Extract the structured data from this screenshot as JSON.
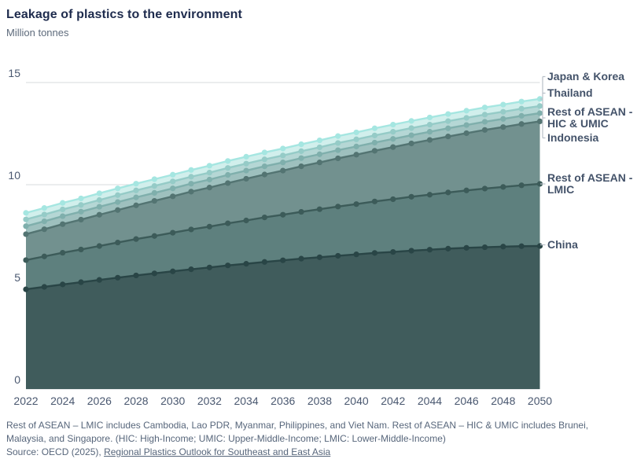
{
  "chart_data": {
    "type": "area",
    "stacked": true,
    "title": "Leakage of plastics to the environment",
    "ylabel": "Million tonnes",
    "xlabel": "",
    "grid": "horizontal",
    "legend": "direct-labels-right",
    "ylim": [
      0,
      16.5
    ],
    "y_ticks": [
      0,
      5,
      10,
      15
    ],
    "x": [
      2022,
      2023,
      2024,
      2025,
      2026,
      2027,
      2028,
      2029,
      2030,
      2031,
      2032,
      2033,
      2034,
      2035,
      2036,
      2037,
      2038,
      2039,
      2040,
      2041,
      2042,
      2043,
      2044,
      2045,
      2046,
      2047,
      2048,
      2049,
      2050
    ],
    "x_tick_years": [
      2022,
      2024,
      2026,
      2028,
      2030,
      2032,
      2034,
      2036,
      2038,
      2040,
      2042,
      2044,
      2046,
      2048,
      2050
    ],
    "series": [
      {
        "name": "China",
        "label_lines": [
          "China"
        ],
        "fill": "#405c5c",
        "line": "#294546",
        "values": [
          4.88,
          5.0,
          5.12,
          5.23,
          5.34,
          5.45,
          5.56,
          5.66,
          5.76,
          5.86,
          5.95,
          6.05,
          6.13,
          6.22,
          6.3,
          6.38,
          6.45,
          6.52,
          6.59,
          6.66,
          6.71,
          6.77,
          6.82,
          6.87,
          6.91,
          6.94,
          6.97,
          6.99,
          7.0
        ]
      },
      {
        "name": "Rest of ASEAN - LMIC",
        "label_lines": [
          "Rest of ASEAN -",
          "LMIC"
        ],
        "fill": "#5e807e",
        "line": "#3c5b59",
        "values": [
          1.43,
          1.49,
          1.55,
          1.6,
          1.66,
          1.72,
          1.78,
          1.83,
          1.89,
          1.95,
          2.0,
          2.06,
          2.12,
          2.18,
          2.23,
          2.29,
          2.35,
          2.41,
          2.46,
          2.52,
          2.58,
          2.64,
          2.69,
          2.75,
          2.81,
          2.87,
          2.92,
          2.98,
          3.04
        ]
      },
      {
        "name": "Indonesia",
        "label_lines": [
          "Indonesia"
        ],
        "fill": "#72918f",
        "line": "#537472",
        "values": [
          1.27,
          1.33,
          1.4,
          1.46,
          1.53,
          1.59,
          1.65,
          1.72,
          1.78,
          1.85,
          1.91,
          1.97,
          2.04,
          2.1,
          2.16,
          2.23,
          2.29,
          2.36,
          2.42,
          2.48,
          2.55,
          2.61,
          2.68,
          2.74,
          2.8,
          2.87,
          2.93,
          3.0,
          3.06
        ]
      },
      {
        "name": "Rest of ASEAN - HIC & UMIC",
        "label_lines": [
          "Rest of ASEAN -",
          "HIC & UMIC"
        ],
        "fill": "#9ec0be",
        "line": "#7fafac",
        "values": [
          0.39,
          0.39,
          0.39,
          0.39,
          0.39,
          0.39,
          0.39,
          0.39,
          0.39,
          0.39,
          0.39,
          0.4,
          0.4,
          0.4,
          0.4,
          0.4,
          0.4,
          0.4,
          0.4,
          0.4,
          0.4,
          0.4,
          0.4,
          0.4,
          0.4,
          0.4,
          0.4,
          0.4,
          0.4
        ]
      },
      {
        "name": "Thailand",
        "label_lines": [
          "Thailand"
        ],
        "fill": "#b5d7d5",
        "line": "#95cbc7",
        "values": [
          0.33,
          0.33,
          0.33,
          0.33,
          0.33,
          0.34,
          0.34,
          0.34,
          0.34,
          0.34,
          0.34,
          0.34,
          0.34,
          0.34,
          0.34,
          0.34,
          0.34,
          0.35,
          0.35,
          0.35,
          0.35,
          0.35,
          0.35,
          0.35,
          0.35,
          0.35,
          0.35,
          0.35,
          0.35
        ]
      },
      {
        "name": "Japan & Korea",
        "label_lines": [
          "Japan & Korea"
        ],
        "fill": "#d1efec",
        "line": "#a5e6e1",
        "values": [
          0.32,
          0.32,
          0.32,
          0.32,
          0.33,
          0.33,
          0.33,
          0.33,
          0.33,
          0.33,
          0.34,
          0.34,
          0.34,
          0.34,
          0.34,
          0.34,
          0.34,
          0.34,
          0.34,
          0.35,
          0.35,
          0.35,
          0.35,
          0.35,
          0.35,
          0.35,
          0.35,
          0.35,
          0.35
        ]
      }
    ],
    "colors": {
      "gridline": "#d7dbde",
      "tick_label": "#4a5870",
      "connector": "#b9c0c8"
    }
  },
  "footnote": {
    "note": "Rest of ASEAN – LMIC includes Cambodia, Lao PDR, Myanmar, Philippines, and Viet Nam. Rest of ASEAN – HIC & UMIC includes Brunei, Malaysia, and Singapore. (HIC: High-Income; UMIC: Upper-Middle-Income; LMIC: Lower-Middle-Income)",
    "source_prefix": "Source: OECD (2025), ",
    "source_link": "Regional Plastics Outlook for Southeast and East Asia"
  }
}
